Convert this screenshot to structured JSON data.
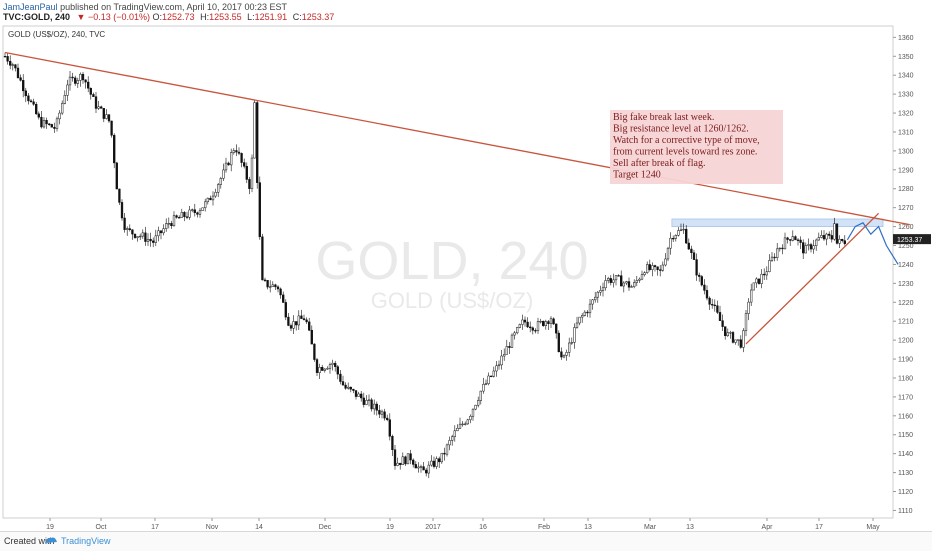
{
  "header": {
    "user": "JamJeanPaul",
    "published_text": "published on TradingView.com, April 10, 2017 00:23 EST",
    "symbol": "TVC:GOLD, 240",
    "change": "▼ −0.13 (−0.01%)",
    "o_label": "O:",
    "o_value": "1252.73",
    "h_label": "H:",
    "h_value": "1253.55",
    "l_label": "L:",
    "l_value": "1251.91",
    "c_label": "C:",
    "c_value": "1253.37"
  },
  "footer": {
    "created_with": "Created with",
    "brand": "TradingView"
  },
  "colors": {
    "candle": "#111111",
    "trendline": "#c8553d",
    "projection": "#2f6fc4",
    "zone_fill": "#cfe0f7",
    "zone_border": "#9fbde6",
    "note_bg": "#f7d4d6",
    "note_text": "#7a1b1b",
    "watermark": "#e9e9e9",
    "price_tag": "#222222"
  },
  "chart_data": {
    "type": "candlestick",
    "title": "GOLD (US$/OZ), 240, TVC",
    "watermark_main": "GOLD, 240",
    "watermark_sub": "GOLD (US$/OZ)",
    "ylim": [
      1106,
      1366
    ],
    "y_ticks": [
      1110,
      1120,
      1130,
      1140,
      1150,
      1160,
      1170,
      1180,
      1190,
      1200,
      1210,
      1220,
      1230,
      1240,
      1250,
      1260,
      1270,
      1280,
      1290,
      1300,
      1310,
      1320,
      1330,
      1340,
      1350,
      1360
    ],
    "current_price_label": "1253.37",
    "x_ticks": [
      "19",
      "Oct",
      "17",
      "Nov",
      "14",
      "Dec",
      "19",
      "2017",
      "16",
      "Feb",
      "13",
      "Mar",
      "13",
      "Apr",
      "17",
      "May"
    ],
    "price_path": [
      {
        "date": "2016-09-06",
        "price": 1350
      },
      {
        "date": "2016-09-08",
        "price": 1346
      },
      {
        "date": "2016-09-12",
        "price": 1328
      },
      {
        "date": "2016-09-15",
        "price": 1315
      },
      {
        "date": "2016-09-19",
        "price": 1312
      },
      {
        "date": "2016-09-22",
        "price": 1336
      },
      {
        "date": "2016-09-26",
        "price": 1340
      },
      {
        "date": "2016-09-29",
        "price": 1325
      },
      {
        "date": "2016-10-03",
        "price": 1315
      },
      {
        "date": "2016-10-05",
        "price": 1275
      },
      {
        "date": "2016-10-07",
        "price": 1258
      },
      {
        "date": "2016-10-11",
        "price": 1255
      },
      {
        "date": "2016-10-14",
        "price": 1252
      },
      {
        "date": "2016-10-18",
        "price": 1262
      },
      {
        "date": "2016-10-21",
        "price": 1265
      },
      {
        "date": "2016-10-25",
        "price": 1268
      },
      {
        "date": "2016-10-28",
        "price": 1273
      },
      {
        "date": "2016-11-01",
        "price": 1288
      },
      {
        "date": "2016-11-04",
        "price": 1303
      },
      {
        "date": "2016-11-08",
        "price": 1280
      },
      {
        "date": "2016-11-09",
        "price": 1325
      },
      {
        "date": "2016-11-10",
        "price": 1265
      },
      {
        "date": "2016-11-11",
        "price": 1230
      },
      {
        "date": "2016-11-15",
        "price": 1228
      },
      {
        "date": "2016-11-18",
        "price": 1208
      },
      {
        "date": "2016-11-22",
        "price": 1212
      },
      {
        "date": "2016-11-25",
        "price": 1185
      },
      {
        "date": "2016-11-29",
        "price": 1188
      },
      {
        "date": "2016-12-02",
        "price": 1175
      },
      {
        "date": "2016-12-06",
        "price": 1170
      },
      {
        "date": "2016-12-09",
        "price": 1165
      },
      {
        "date": "2016-12-13",
        "price": 1160
      },
      {
        "date": "2016-12-15",
        "price": 1135
      },
      {
        "date": "2016-12-19",
        "price": 1138
      },
      {
        "date": "2016-12-22",
        "price": 1130
      },
      {
        "date": "2016-12-27",
        "price": 1138
      },
      {
        "date": "2016-12-30",
        "price": 1150
      },
      {
        "date": "2017-01-03",
        "price": 1160
      },
      {
        "date": "2017-01-06",
        "price": 1173
      },
      {
        "date": "2017-01-10",
        "price": 1185
      },
      {
        "date": "2017-01-13",
        "price": 1197
      },
      {
        "date": "2017-01-17",
        "price": 1210
      },
      {
        "date": "2017-01-20",
        "price": 1207
      },
      {
        "date": "2017-01-24",
        "price": 1212
      },
      {
        "date": "2017-01-27",
        "price": 1188
      },
      {
        "date": "2017-01-31",
        "price": 1210
      },
      {
        "date": "2017-02-03",
        "price": 1218
      },
      {
        "date": "2017-02-07",
        "price": 1232
      },
      {
        "date": "2017-02-10",
        "price": 1232
      },
      {
        "date": "2017-02-14",
        "price": 1228
      },
      {
        "date": "2017-02-17",
        "price": 1238
      },
      {
        "date": "2017-02-21",
        "price": 1236
      },
      {
        "date": "2017-02-24",
        "price": 1256
      },
      {
        "date": "2017-02-27",
        "price": 1258
      },
      {
        "date": "2017-03-01",
        "price": 1245
      },
      {
        "date": "2017-03-03",
        "price": 1232
      },
      {
        "date": "2017-03-07",
        "price": 1216
      },
      {
        "date": "2017-03-10",
        "price": 1203
      },
      {
        "date": "2017-03-14",
        "price": 1198
      },
      {
        "date": "2017-03-16",
        "price": 1226
      },
      {
        "date": "2017-03-20",
        "price": 1236
      },
      {
        "date": "2017-03-23",
        "price": 1248
      },
      {
        "date": "2017-03-27",
        "price": 1256
      },
      {
        "date": "2017-03-30",
        "price": 1247
      },
      {
        "date": "2017-04-03",
        "price": 1254
      },
      {
        "date": "2017-04-06",
        "price": 1254
      },
      {
        "date": "2017-04-07",
        "price": 1268
      },
      {
        "date": "2017-04-07",
        "price": 1251
      },
      {
        "date": "2017-04-10",
        "price": 1253
      }
    ],
    "projection": [
      {
        "date": "2017-04-10",
        "price": 1253
      },
      {
        "date": "2017-04-12",
        "price": 1260
      },
      {
        "date": "2017-04-14",
        "price": 1262
      },
      {
        "date": "2017-04-16",
        "price": 1256
      },
      {
        "date": "2017-04-18",
        "price": 1260
      },
      {
        "date": "2017-04-20",
        "price": 1250
      },
      {
        "date": "2017-04-23",
        "price": 1240
      }
    ],
    "resistance_zone": {
      "from": 1260,
      "to": 1264,
      "start": "2017-02-24"
    },
    "trendlines": [
      {
        "name": "descending",
        "points": [
          {
            "date": "2016-09-06",
            "price": 1352
          },
          {
            "date": "2017-04-26",
            "price": 1261
          }
        ]
      },
      {
        "name": "ascending",
        "points": [
          {
            "date": "2017-03-15",
            "price": 1198
          },
          {
            "date": "2017-04-18",
            "price": 1267
          }
        ]
      }
    ],
    "annotation": [
      "Big fake break last week.",
      "Big resistance level at 1260/1262.",
      "Watch for a corrective type of move,",
      "from current levels toward res zone.",
      "Sell after break of flag.",
      "Target 1240"
    ]
  }
}
